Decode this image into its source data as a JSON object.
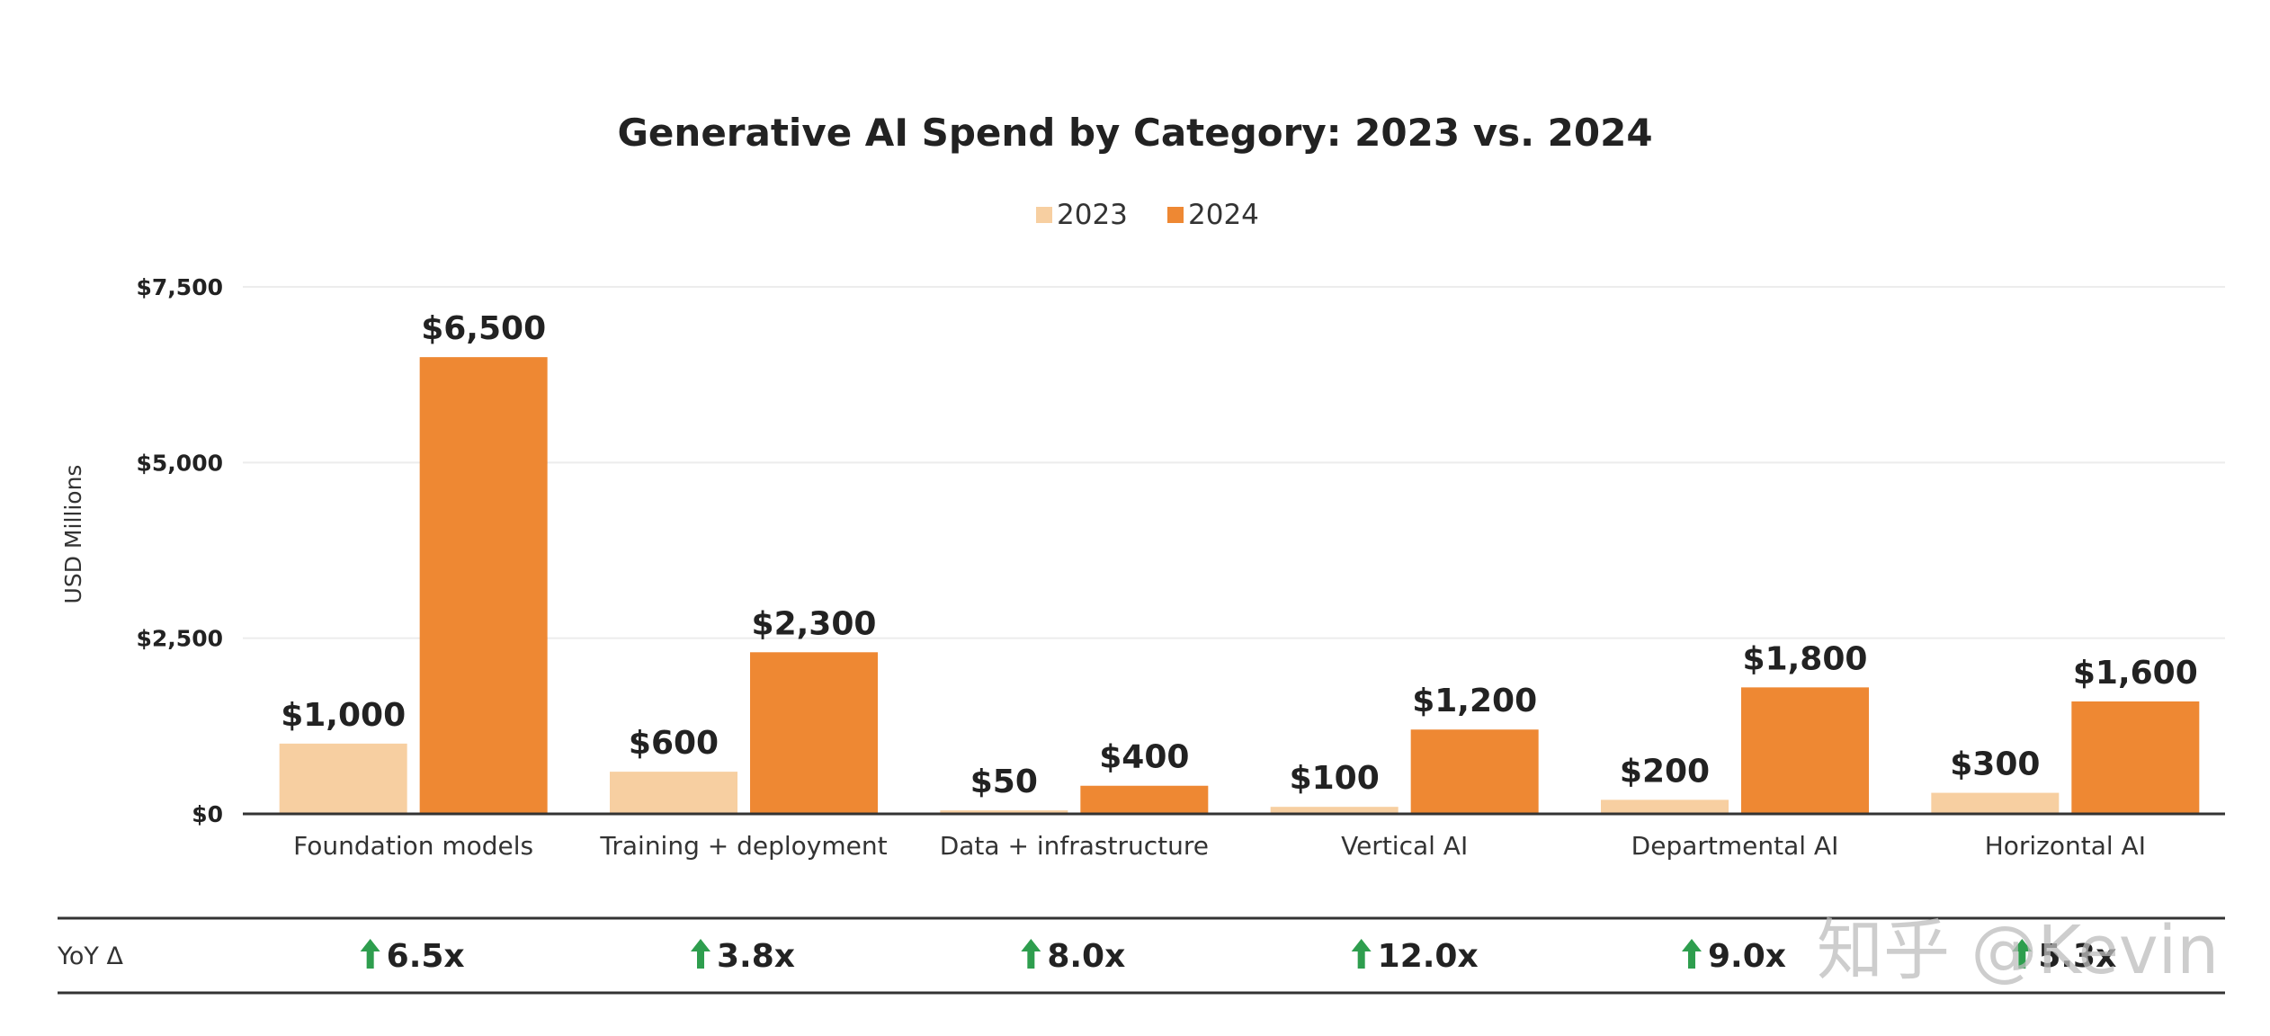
{
  "chart_data": {
    "type": "bar",
    "title": "Generative AI Spend by Category: 2023 vs. 2024",
    "ylabel": "USD Millions",
    "ylim": [
      0,
      7500
    ],
    "yticks": [
      "$7,500",
      "$5,000",
      "$2,500",
      "$0"
    ],
    "ytick_values": [
      7500,
      5000,
      2500,
      0
    ],
    "grid": true,
    "legend_position": "top-center",
    "categories": [
      "Foundation models",
      "Training + deployment",
      "Data + infrastructure",
      "Vertical AI",
      "Departmental AI",
      "Horizontal AI"
    ],
    "series": [
      {
        "name": "2023",
        "color": "#f7cfa1",
        "values": [
          1000,
          600,
          50,
          100,
          200,
          300
        ],
        "labels": [
          "$1,000",
          "$600",
          "$50",
          "$100",
          "$200",
          "$300"
        ]
      },
      {
        "name": "2024",
        "color": "#ee8833",
        "values": [
          6500,
          2300,
          400,
          1200,
          1800,
          1600
        ],
        "labels": [
          "$6,500",
          "$2,300",
          "$400",
          "$1,200",
          "$1,800",
          "$1,600"
        ]
      }
    ]
  },
  "yoy": {
    "label": "YoY Δ",
    "values": [
      "6.5x",
      "3.8x",
      "8.0x",
      "12.0x",
      "9.0x",
      "5.3x"
    ],
    "arrow_color": "#2e9e4e"
  },
  "watermark": "知乎 @Kevin"
}
